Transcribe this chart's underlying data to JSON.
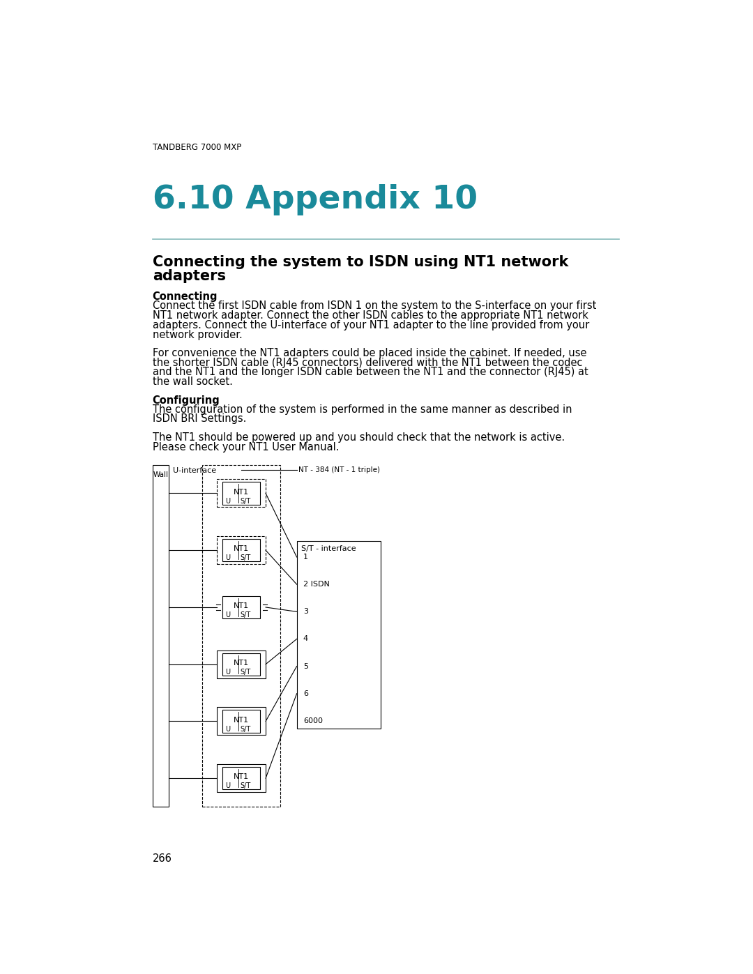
{
  "header": "TANDBERG 7000 MXP",
  "chapter_title": "6.10 Appendix 10",
  "section_title_line1": "Connecting the system to ISDN using NT1 network",
  "section_title_line2": "adapters",
  "connecting_bold": "Connecting",
  "connecting_lines": [
    "Connect the first ISDN cable from ISDN 1 on the system to the S-interface on your first",
    "NT1 network adapter. Connect the other ISDN cables to the appropriate NT1 network",
    "adapters. Connect the U-interface of your NT1 adapter to the line provided from your",
    "network provider."
  ],
  "para2_lines": [
    "For convenience the NT1 adapters could be placed inside the cabinet. If needed, use",
    "the shorter ISDN cable (RJ45 connectors) delivered with the NT1 between the codec",
    "and the NT1 and the longer ISDN cable between the NT1 and the connector (RJ45) at",
    "the wall socket."
  ],
  "configuring_bold": "Configuring",
  "configuring_lines": [
    "The configuration of the system is performed in the same manner as described in",
    "ISDN BRI Settings."
  ],
  "para4_lines": [
    "The NT1 should be powered up and you should check that the network is active.",
    "Please check your NT1 User Manual."
  ],
  "page_number": "266",
  "title_color": "#1a8a9a",
  "header_color": "#000000",
  "text_color": "#000000",
  "line_color": "#88bbbb",
  "diagram_color": "#000000",
  "background_color": "#ffffff"
}
